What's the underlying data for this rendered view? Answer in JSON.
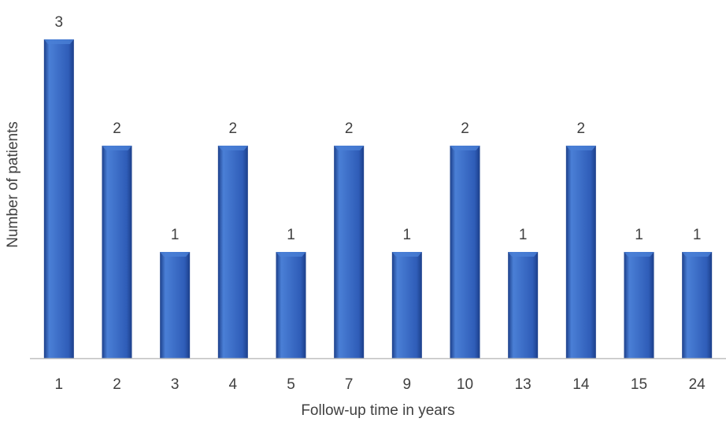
{
  "chart_data": {
    "type": "bar",
    "categories": [
      "1",
      "2",
      "3",
      "4",
      "5",
      "7",
      "9",
      "10",
      "13",
      "14",
      "15",
      "24"
    ],
    "values": [
      3,
      2,
      1,
      2,
      1,
      2,
      1,
      2,
      1,
      2,
      1,
      1
    ],
    "data_labels": [
      "3",
      "2",
      "1",
      "2",
      "1",
      "2",
      "1",
      "2",
      "1",
      "2",
      "1",
      "1"
    ],
    "xlabel": "Follow-up time in years",
    "ylabel": "Number of patients",
    "ylim": [
      0,
      3
    ],
    "grid": false,
    "legend": "none",
    "bar_color": "#2f5db8",
    "bar_color_dark": "#1c3f8a",
    "bar_color_light": "#4a7fd6",
    "axis_color": "#bfbfbf"
  }
}
